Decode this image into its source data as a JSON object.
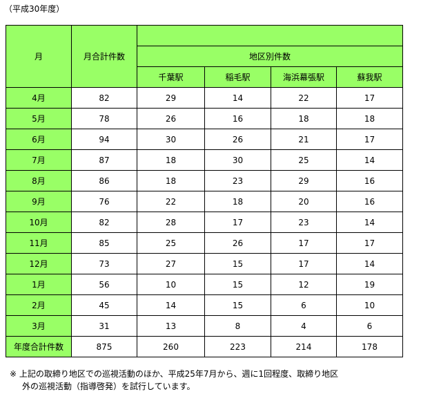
{
  "caption": "（平成30年度）",
  "header": {
    "month": "月",
    "total": "月合計件数",
    "area": "地区別件数",
    "stations": [
      "千葉駅",
      "稲毛駅",
      "海浜幕張駅",
      "蘇我駅"
    ]
  },
  "rows": [
    {
      "month": "4月",
      "total": 82,
      "stations": [
        29,
        14,
        22,
        17
      ]
    },
    {
      "month": "5月",
      "total": 78,
      "stations": [
        26,
        16,
        18,
        18
      ]
    },
    {
      "month": "6月",
      "total": 94,
      "stations": [
        30,
        26,
        21,
        17
      ]
    },
    {
      "month": "7月",
      "total": 87,
      "stations": [
        18,
        30,
        25,
        14
      ]
    },
    {
      "month": "8月",
      "total": 86,
      "stations": [
        18,
        23,
        29,
        16
      ]
    },
    {
      "month": "9月",
      "total": 76,
      "stations": [
        22,
        18,
        20,
        16
      ]
    },
    {
      "month": "10月",
      "total": 82,
      "stations": [
        28,
        17,
        23,
        14
      ]
    },
    {
      "month": "11月",
      "total": 85,
      "stations": [
        25,
        26,
        17,
        17
      ]
    },
    {
      "month": "12月",
      "total": 73,
      "stations": [
        27,
        15,
        17,
        14
      ]
    },
    {
      "month": "1月",
      "total": 56,
      "stations": [
        10,
        15,
        12,
        19
      ]
    },
    {
      "month": "2月",
      "total": 45,
      "stations": [
        14,
        15,
        6,
        10
      ]
    },
    {
      "month": "3月",
      "total": 31,
      "stations": [
        13,
        8,
        4,
        6
      ]
    }
  ],
  "footer": {
    "label": "年度合計件数",
    "total": 875,
    "stations": [
      260,
      223,
      214,
      178
    ]
  },
  "note": [
    "※ 上記の取締り地区での巡視活動のほか、平成25年7月から、週に1回程度、取締り地区",
    "外の巡視活動（指導啓発）を試行しています。"
  ]
}
